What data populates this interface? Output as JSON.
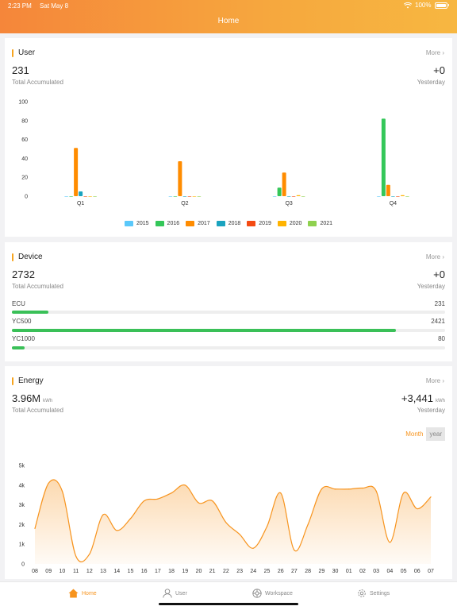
{
  "status": {
    "time": "2:23 PM",
    "date": "Sat May 8",
    "battery": "100%"
  },
  "header": {
    "title": "Home"
  },
  "user": {
    "title": "User",
    "more": "More",
    "total": "231",
    "total_label": "Total Accumulated",
    "delta": "+0",
    "delta_label": "Yesterday"
  },
  "device": {
    "title": "Device",
    "more": "More",
    "total": "2732",
    "total_label": "Total Accumulated",
    "delta": "+0",
    "delta_label": "Yesterday",
    "rows": [
      {
        "label": "ECU",
        "value": "231",
        "fraction": 0.085
      },
      {
        "label": "YC500",
        "value": "2421",
        "fraction": 0.886
      },
      {
        "label": "YC1000",
        "value": "80",
        "fraction": 0.029
      }
    ]
  },
  "energy": {
    "title": "Energy",
    "more": "More",
    "total": "3.96M",
    "unit": "kWh",
    "total_label": "Total Accumulated",
    "delta": "+3,441",
    "delta_label": "Yesterday",
    "toggle_month": "Month",
    "toggle_year": "year"
  },
  "tabs": [
    {
      "label": "Home",
      "icon": "home-icon"
    },
    {
      "label": "User",
      "icon": "user-icon"
    },
    {
      "label": "Workspace",
      "icon": "workspace-icon"
    },
    {
      "label": "Settings",
      "icon": "settings-icon"
    }
  ],
  "chart_data": [
    {
      "type": "bar",
      "categories": [
        "Q1",
        "Q2",
        "Q3",
        "Q4"
      ],
      "yticks": [
        "100",
        "80",
        "60",
        "40",
        "20",
        "0"
      ],
      "ylim": [
        0,
        100
      ],
      "legend_position": "bottom",
      "series": [
        {
          "name": "2015",
          "color": "#5ac8fa",
          "values": [
            0,
            0,
            0,
            0
          ]
        },
        {
          "name": "2016",
          "color": "#34c759",
          "values": [
            0,
            0,
            9,
            82
          ]
        },
        {
          "name": "2017",
          "color": "#ff8c00",
          "values": [
            51,
            37,
            25,
            12
          ]
        },
        {
          "name": "2018",
          "color": "#1aa3bf",
          "values": [
            5,
            0,
            0,
            0
          ]
        },
        {
          "name": "2019",
          "color": "#f44a12",
          "values": [
            0,
            0,
            0,
            0
          ]
        },
        {
          "name": "2020",
          "color": "#ffb300",
          "values": [
            0,
            0,
            1,
            1
          ]
        },
        {
          "name": "2021",
          "color": "#8fd14f",
          "values": [
            0,
            0,
            0,
            0
          ]
        }
      ]
    },
    {
      "type": "area",
      "x": [
        "08",
        "09",
        "10",
        "11",
        "12",
        "13",
        "14",
        "15",
        "16",
        "17",
        "18",
        "19",
        "20",
        "21",
        "22",
        "23",
        "24",
        "25",
        "26",
        "27",
        "28",
        "29",
        "30",
        "01",
        "02",
        "03",
        "04",
        "05",
        "06",
        "07"
      ],
      "yticks": [
        "5k",
        "4k",
        "3k",
        "2k",
        "1k",
        "0"
      ],
      "ylim": [
        0,
        5000
      ],
      "color": "#f7941e",
      "values": [
        1800,
        4100,
        3700,
        400,
        500,
        2500,
        1700,
        2300,
        3200,
        3300,
        3600,
        4000,
        3100,
        3200,
        2100,
        1500,
        800,
        1900,
        3600,
        700,
        2000,
        3800,
        3800,
        3800,
        3850,
        3700,
        1100,
        3600,
        2800,
        3400
      ]
    }
  ]
}
